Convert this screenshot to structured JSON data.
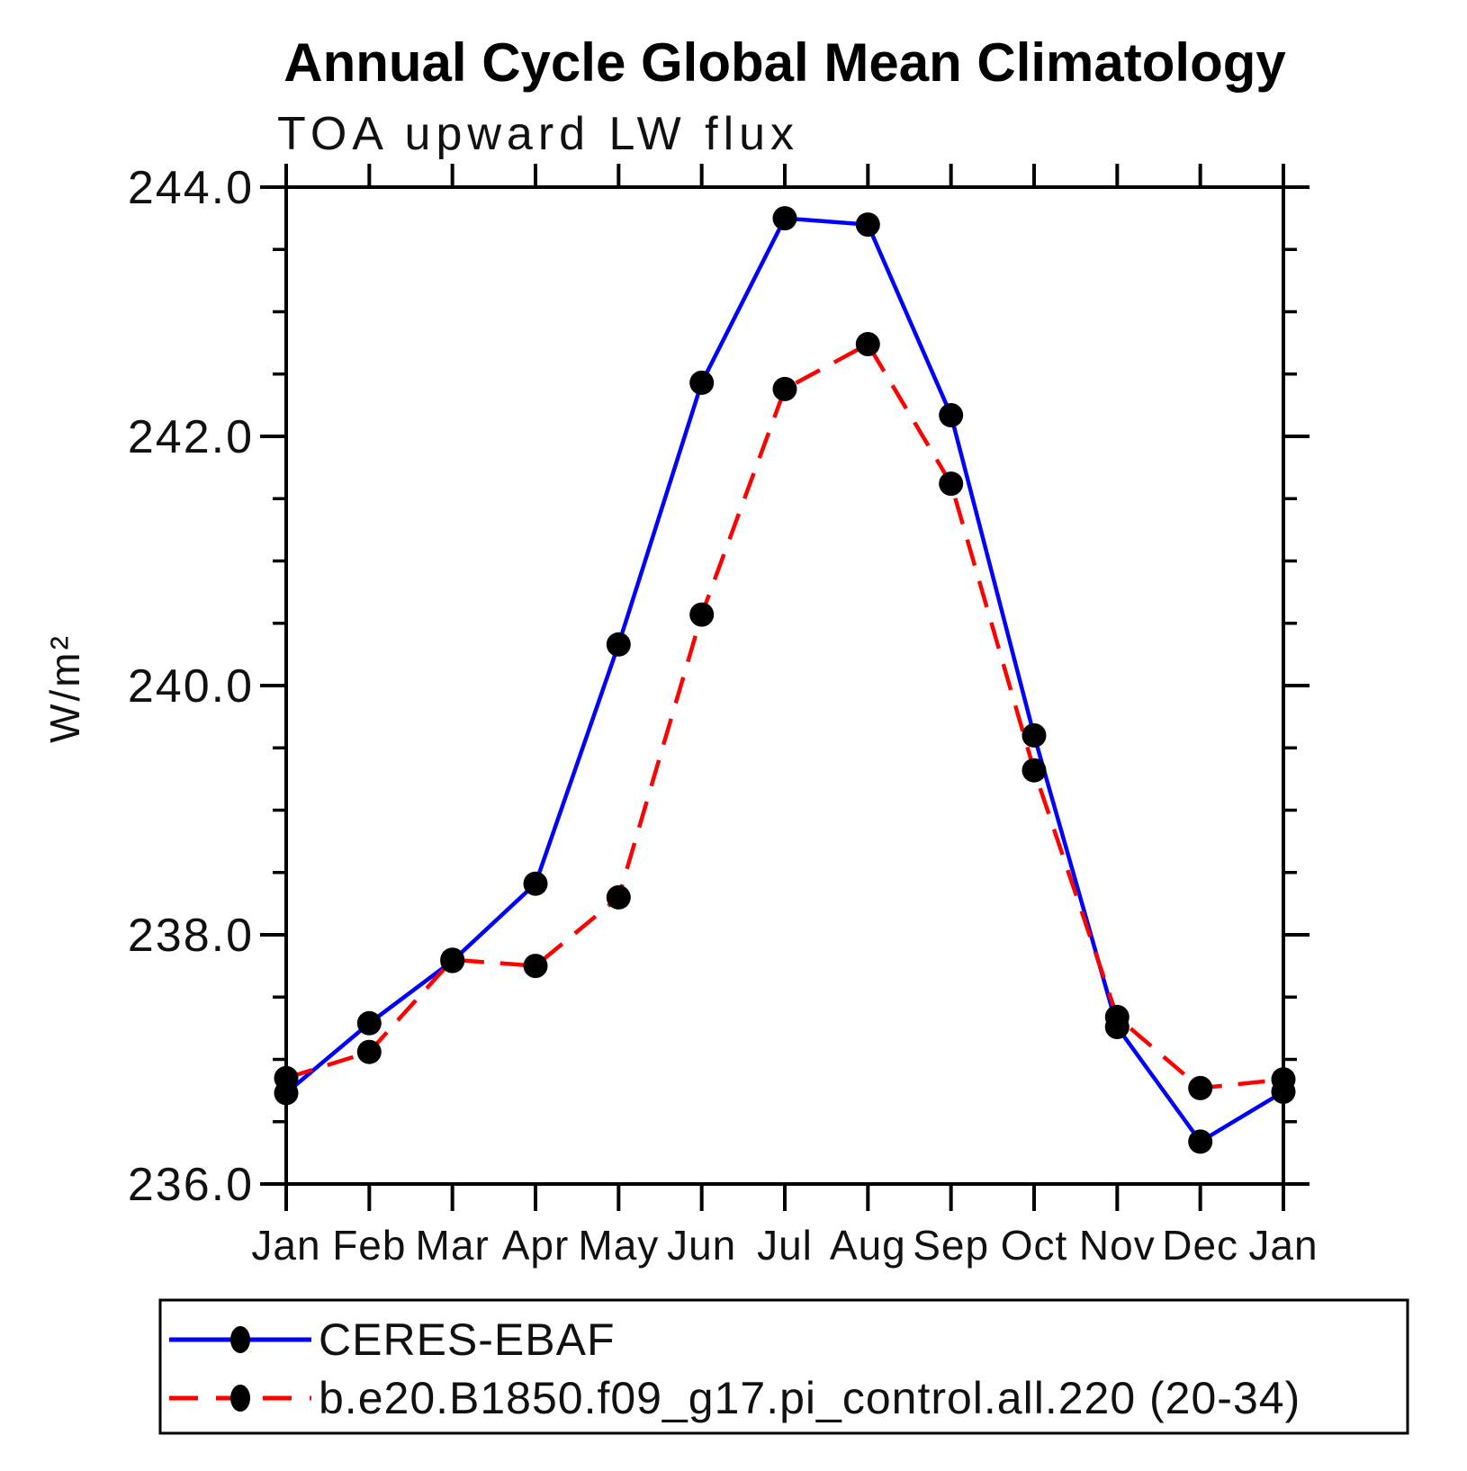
{
  "chart_data": {
    "type": "line",
    "title": "Annual Cycle Global Mean Climatology",
    "subtitle": "TOA upward LW flux",
    "xlabel": "",
    "ylabel": "W/m²",
    "x_categories": [
      "Jan",
      "Feb",
      "Mar",
      "Apr",
      "May",
      "Jun",
      "Jul",
      "Aug",
      "Sep",
      "Oct",
      "Nov",
      "Dec",
      "Jan"
    ],
    "ylim": [
      236.0,
      244.0
    ],
    "ytick_major_values": [
      236.0,
      238.0,
      240.0,
      242.0,
      244.0
    ],
    "ytick_major_labels": [
      "236.0",
      "238.0",
      "240.0",
      "242.0",
      "244.0"
    ],
    "ytick_minor_step": 0.5,
    "grid": false,
    "legend_position": "bottom-left-box",
    "marker": {
      "shape": "circle",
      "color": "#000000"
    },
    "series": [
      {
        "name": "CERES-EBAF",
        "color": "#0000ff",
        "line_style": "solid",
        "values": [
          236.73,
          237.29,
          237.79,
          238.41,
          240.33,
          242.43,
          243.75,
          243.7,
          242.17,
          239.6,
          237.26,
          236.34,
          236.74
        ]
      },
      {
        "name": "b.e20.B1850.f09_g17.pi_control.all.220 (20-34)",
        "color": "#ff0000",
        "line_style": "dashed",
        "values": [
          236.85,
          237.06,
          237.8,
          237.75,
          238.3,
          240.57,
          242.38,
          242.74,
          241.62,
          239.32,
          237.34,
          236.77,
          236.84
        ]
      }
    ]
  }
}
